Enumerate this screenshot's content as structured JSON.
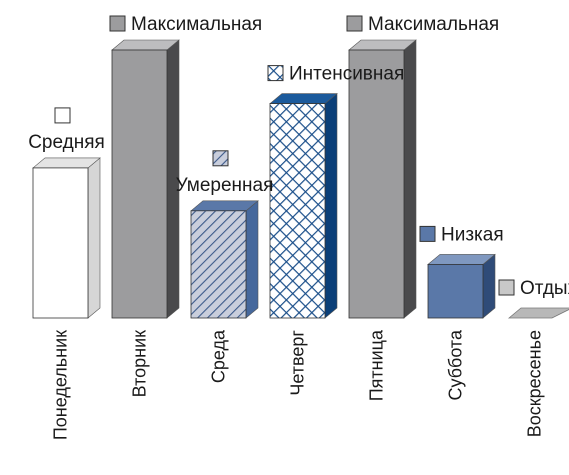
{
  "chart_data": {
    "type": "bar",
    "style": "3d-column",
    "title": "",
    "xlabel": "",
    "ylabel": "",
    "categories": [
      "Понедельник",
      "Вторник",
      "Среда",
      "Четверг",
      "Пятница",
      "Суббота",
      "Воскресенье"
    ],
    "values": [
      56,
      100,
      40,
      80,
      100,
      20,
      0
    ],
    "value_scale": "relative intensity (no axis shown)",
    "ylim": [
      0,
      100
    ],
    "grid": false,
    "bar_labels": [
      "Средняя",
      "Максимальная",
      "Умеренная",
      "Интенсивная",
      "Максимальная",
      "Низкая",
      "Отдых"
    ],
    "bar_styles": [
      {
        "fill": "#ffffff",
        "side": "#d6d6d6",
        "top": "#e4e4e4",
        "pattern": "none",
        "legend_swatch": "#ffffff"
      },
      {
        "fill": "#9c9c9e",
        "side": "#4a4a4c",
        "top": "#bdbdbf",
        "pattern": "none",
        "legend_swatch": "#9c9c9e"
      },
      {
        "fill": "#c9cedc",
        "side": "#46689c",
        "top": "#5a78a8",
        "pattern": "diagonal-stripes",
        "stroke": "#3d5a8a",
        "legend_swatch": "#c9cedc"
      },
      {
        "fill": "#ffffff",
        "side": "#0b3f78",
        "top": "#1b5a9c",
        "pattern": "crosshatch",
        "stroke": "#1b4f8a",
        "legend_swatch": "#ffffff"
      },
      {
        "fill": "#9c9c9e",
        "side": "#4a4a4c",
        "top": "#bdbdbf",
        "pattern": "none",
        "legend_swatch": "#9c9c9e"
      },
      {
        "fill": "#5a78a8",
        "side": "#2f4b78",
        "top": "#7f98c0",
        "pattern": "none",
        "legend_swatch": "#5a78a8"
      },
      {
        "fill": "#b8b8b8",
        "side": "#8a8a8a",
        "top": "#c8c8c8",
        "pattern": "none",
        "legend_swatch": "#c8c8c8"
      }
    ]
  }
}
